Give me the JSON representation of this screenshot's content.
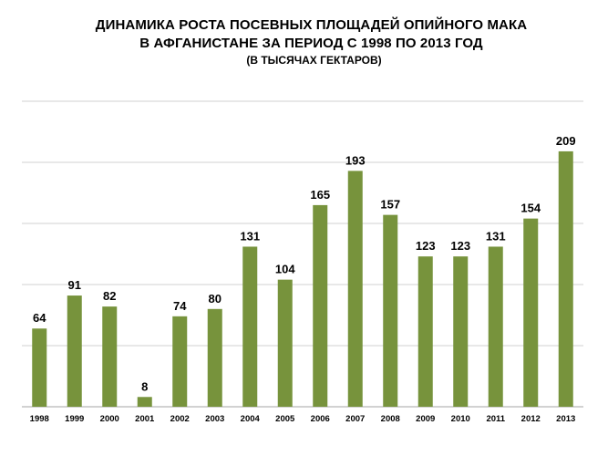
{
  "chart_data": {
    "type": "bar",
    "title_line1": "ДИНАМИКА РОСТА ПОСЕВНЫХ ПЛОЩАДЕЙ ОПИЙНОГО МАКА",
    "title_line2": "В АФГАНИСТАНЕ ЗА ПЕРИОД С 1998 ПО 2013 ГОД",
    "subtitle": "(В ТЫСЯЧАХ ГЕКТАРОВ)",
    "categories": [
      "1998",
      "1999",
      "2000",
      "2001",
      "2002",
      "2003",
      "2004",
      "2005",
      "2006",
      "2007",
      "2008",
      "2009",
      "2010",
      "2011",
      "2012",
      "2013"
    ],
    "values": [
      64,
      91,
      82,
      8,
      74,
      80,
      131,
      104,
      165,
      193,
      157,
      123,
      123,
      131,
      154,
      209
    ],
    "ylim": [
      0,
      250
    ],
    "grid": true,
    "bar_color": "#77933c",
    "grid_color": "#d0d0d0"
  }
}
